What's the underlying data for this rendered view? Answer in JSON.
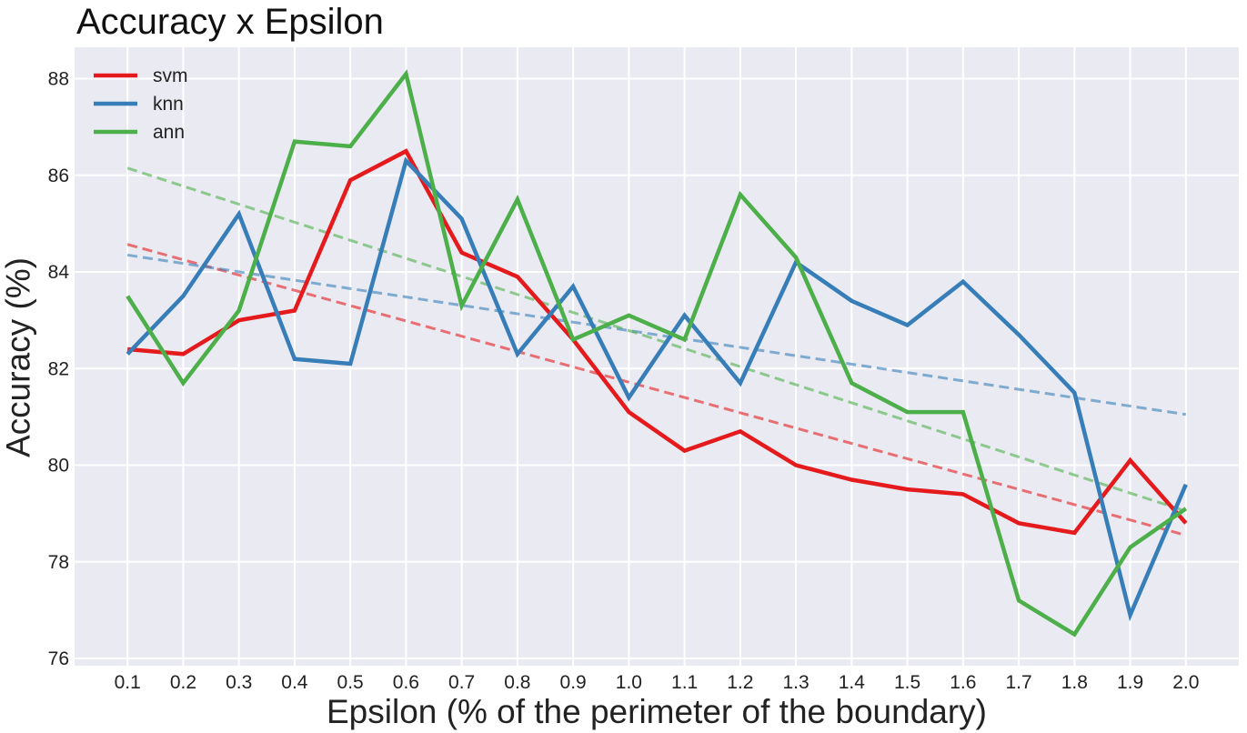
{
  "chart_data": {
    "type": "line",
    "title": "Accuracy x Epsilon",
    "xlabel": "Epsilon (% of the perimeter of the boundary)",
    "ylabel": "Accuracy (%)",
    "x": [
      0.1,
      0.2,
      0.3,
      0.4,
      0.5,
      0.6,
      0.7,
      0.8,
      0.9,
      1.0,
      1.1,
      1.2,
      1.3,
      1.4,
      1.5,
      1.6,
      1.7,
      1.8,
      1.9,
      2.0
    ],
    "x_tick_labels": [
      "0.1",
      "0.2",
      "0.3",
      "0.4",
      "0.5",
      "0.6",
      "0.7",
      "0.8",
      "0.9",
      "1.0",
      "1.1",
      "1.2",
      "1.3",
      "1.4",
      "1.5",
      "1.6",
      "1.7",
      "1.8",
      "1.9",
      "2.0"
    ],
    "y_ticks": [
      76,
      78,
      80,
      82,
      84,
      86,
      88
    ],
    "xlim": [
      0.005,
      2.095
    ],
    "ylim": [
      75.85,
      88.65
    ],
    "grid": true,
    "legend_position": "top-left",
    "series": [
      {
        "name": "svm",
        "color": "#e41a1c",
        "values": [
          82.4,
          82.3,
          83.0,
          83.2,
          85.9,
          86.5,
          84.4,
          83.9,
          82.6,
          81.1,
          80.3,
          80.7,
          80.0,
          79.7,
          79.5,
          79.4,
          78.8,
          78.6,
          80.1,
          78.8
        ],
        "trend": [
          84.57,
          78.55
        ]
      },
      {
        "name": "knn",
        "color": "#377eb8",
        "values": [
          82.3,
          83.5,
          85.2,
          82.2,
          82.1,
          86.3,
          85.1,
          82.3,
          83.7,
          81.4,
          83.1,
          81.7,
          84.2,
          83.4,
          82.9,
          83.8,
          82.7,
          81.5,
          76.9,
          79.6
        ],
        "trend": [
          84.35,
          81.05
        ]
      },
      {
        "name": "ann",
        "color": "#4daf4a",
        "values": [
          83.5,
          81.7,
          83.2,
          86.7,
          86.6,
          88.1,
          83.3,
          85.5,
          82.6,
          83.1,
          82.6,
          85.6,
          84.3,
          81.7,
          81.1,
          81.1,
          77.2,
          76.5,
          78.3,
          79.1
        ],
        "trend": [
          86.15,
          79.05
        ]
      }
    ]
  }
}
